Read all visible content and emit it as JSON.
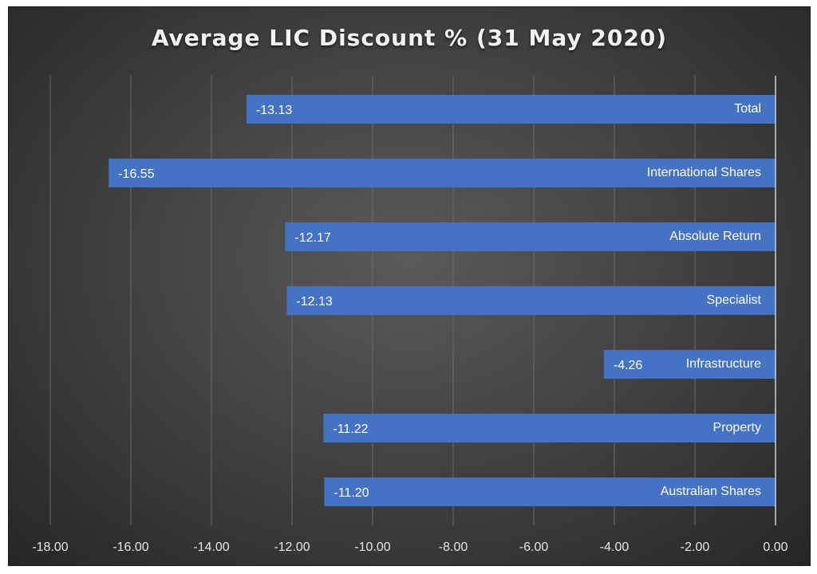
{
  "chart_data": {
    "type": "bar",
    "orientation": "horizontal",
    "title": "Average LIC Discount % (31 May 2020)",
    "xlabel": "",
    "ylabel": "",
    "xlim": [
      -18,
      0
    ],
    "x_ticks": [
      "-18.00",
      "-16.00",
      "-14.00",
      "-12.00",
      "-10.00",
      "-8.00",
      "-6.00",
      "-4.00",
      "-2.00",
      "0.00"
    ],
    "categories": [
      "Total",
      "International Shares",
      "Absolute Return",
      "Specialist",
      "Infrastructure",
      "Property",
      "Australian Shares"
    ],
    "values": [
      -13.13,
      -16.55,
      -12.17,
      -12.13,
      -4.26,
      -11.22,
      -11.2
    ],
    "value_labels": [
      "-13.13",
      "-16.55",
      "-12.17",
      "-12.13",
      "-4.26",
      "-11.22",
      "-11.20"
    ],
    "grid": true,
    "legend": "none",
    "colors": {
      "bar": "#4472c4",
      "background": "#404040",
      "grid": "#6a6a6a",
      "text": "#ffffff"
    }
  }
}
